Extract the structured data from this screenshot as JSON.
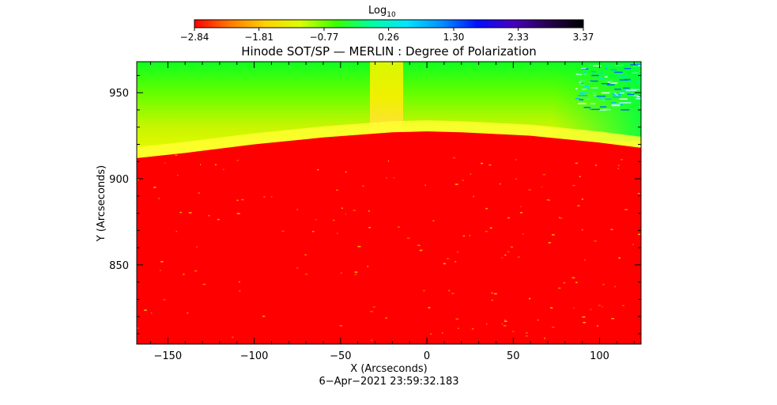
{
  "chart_data": {
    "type": "heatmap",
    "title": "Hinode SOT/SP — MERLIN : Degree of Polarization",
    "xlabel": "X (Arcseconds)",
    "ylabel": "Y (Arcseconds)",
    "xlim": [
      -168,
      124
    ],
    "ylim": [
      804,
      968
    ],
    "x_ticks": [
      -150,
      -100,
      -50,
      0,
      50,
      100
    ],
    "y_ticks": [
      850,
      900,
      950
    ],
    "x_tick_labels": [
      "−150",
      "−100",
      "−50",
      "0",
      "50",
      "100"
    ],
    "y_tick_labels": [
      "850",
      "900",
      "950"
    ],
    "timestamp": "6−Apr−2021 23:59:32.183",
    "colorbar": {
      "label": "Log",
      "label_sub": "10",
      "range": [
        -2.84,
        3.37
      ],
      "ticks": [
        -2.84,
        -1.81,
        -0.77,
        0.26,
        1.3,
        2.33,
        3.37
      ],
      "tick_labels": [
        "−2.84",
        "−1.81",
        "−0.77",
        "0.26",
        "1.30",
        "2.33",
        "3.37"
      ],
      "colors": [
        "#ff0000",
        "#ff7a00",
        "#ffd200",
        "#dcff00",
        "#3cff00",
        "#00ffa0",
        "#00e6ff",
        "#0090ff",
        "#0010ff",
        "#4800c0",
        "#280050",
        "#000000"
      ]
    },
    "limb_profile": {
      "x": [
        -168,
        -140,
        -100,
        -60,
        -20,
        0,
        20,
        60,
        100,
        124
      ],
      "y": [
        912,
        915,
        920,
        924,
        927,
        927.5,
        927,
        925,
        921,
        918
      ]
    },
    "map_colors": {
      "disk": "#ff0000",
      "limb_band": "#ffff30",
      "corona_low": "#c8f800",
      "corona_high": "#00ff30",
      "column": "#f2f000",
      "corner_noise": "#00d8ff"
    }
  }
}
